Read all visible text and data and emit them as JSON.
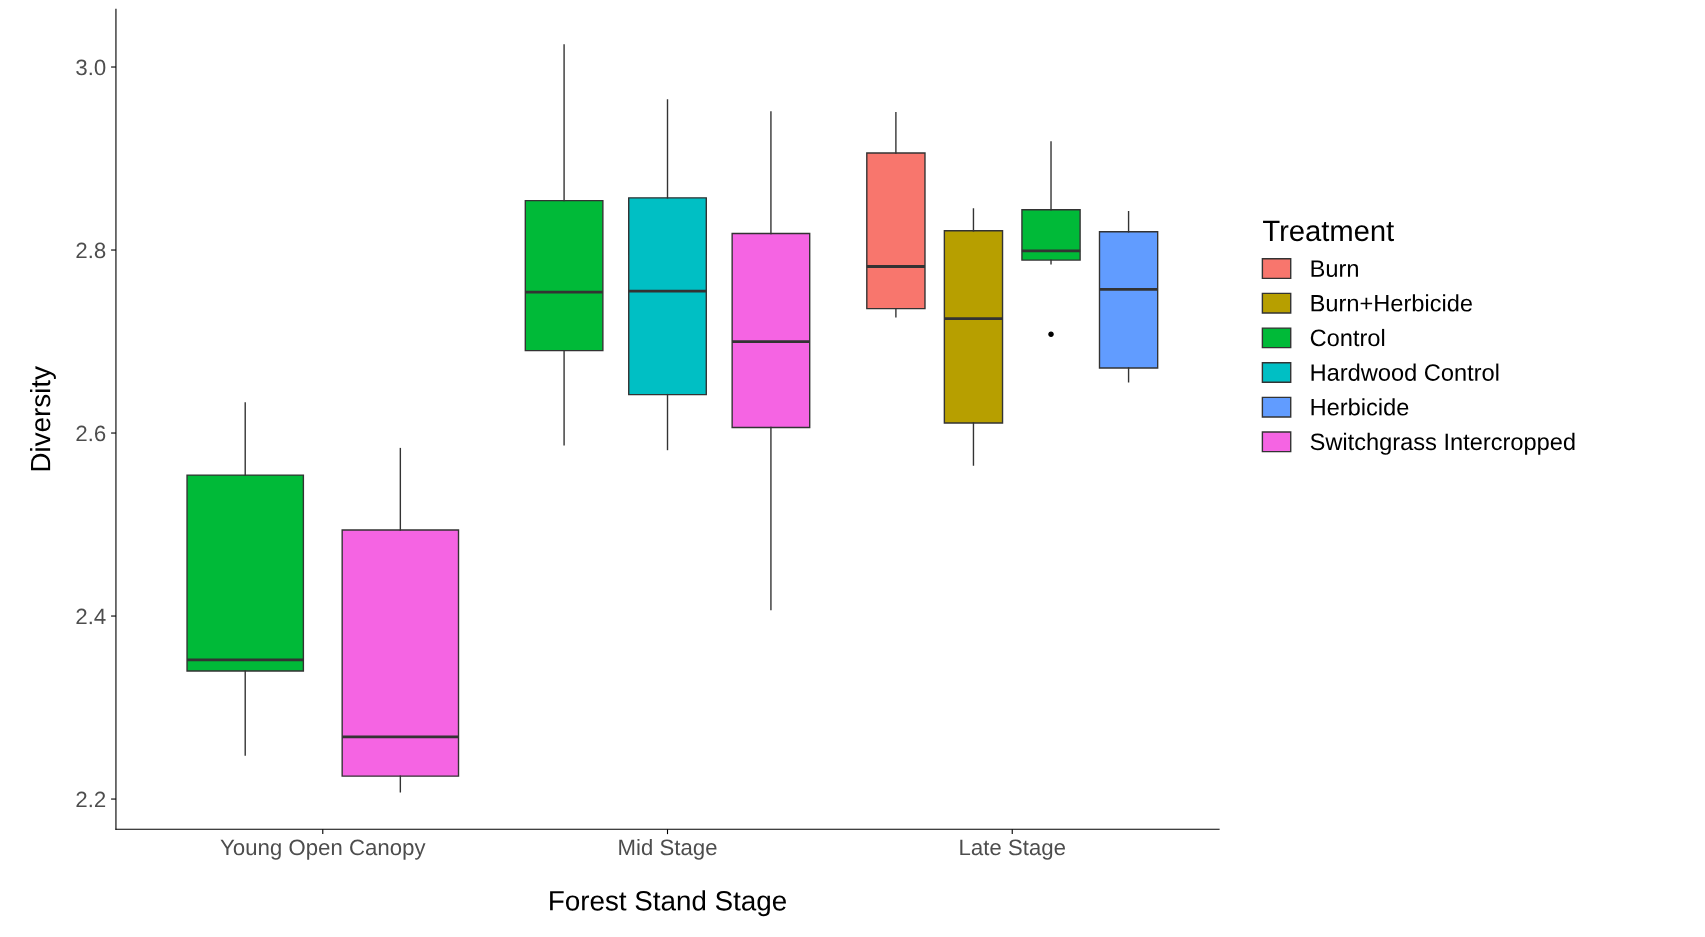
{
  "chart_data": {
    "type": "box",
    "xlabel": "Forest Stand Stage",
    "ylabel": "Diversity",
    "legend_title": "Treatment",
    "legend": "right",
    "grid": false,
    "categories": [
      "Young Open Canopy",
      "Mid Stage",
      "Late Stage"
    ],
    "ylim": [
      2.167,
      3.063
    ],
    "yticks": [
      {
        "value": 2.2,
        "label": "2.2"
      },
      {
        "value": 2.4,
        "label": "2.4"
      },
      {
        "value": 2.6,
        "label": "2.6"
      },
      {
        "value": 2.8,
        "label": "2.8"
      },
      {
        "value": 3.0,
        "label": "3.0"
      }
    ],
    "series": [
      {
        "name": "Burn",
        "color": "#f8766d",
        "boxes": [
          null,
          null,
          {
            "low": 2.727,
            "q1": 2.736,
            "median": 2.782,
            "q3": 2.906,
            "high": 2.95
          }
        ]
      },
      {
        "name": "Burn+Herbicide",
        "color": "#b79f00",
        "boxes": [
          null,
          null,
          {
            "low": 2.565,
            "q1": 2.611,
            "median": 2.725,
            "q3": 2.821,
            "high": 2.845
          }
        ]
      },
      {
        "name": "Control",
        "color": "#00ba38",
        "boxes": [
          {
            "low": 2.248,
            "q1": 2.34,
            "median": 2.352,
            "q3": 2.554,
            "high": 2.633
          },
          {
            "low": 2.587,
            "q1": 2.69,
            "median": 2.754,
            "q3": 2.854,
            "high": 3.024
          },
          {
            "low": 2.785,
            "q1": 2.789,
            "median": 2.799,
            "q3": 2.844,
            "high": 2.918,
            "outliers": [
              2.708
            ]
          }
        ]
      },
      {
        "name": "Hardwood Control",
        "color": "#00bfc4",
        "boxes": [
          null,
          {
            "low": 2.582,
            "q1": 2.642,
            "median": 2.755,
            "q3": 2.857,
            "high": 2.964
          },
          null
        ]
      },
      {
        "name": "Herbicide",
        "color": "#619cff",
        "boxes": [
          null,
          null,
          {
            "low": 2.656,
            "q1": 2.671,
            "median": 2.757,
            "q3": 2.82,
            "high": 2.842
          }
        ]
      },
      {
        "name": "Switchgrass Intercropped",
        "color": "#f564e3",
        "boxes": [
          {
            "low": 2.208,
            "q1": 2.225,
            "median": 2.268,
            "q3": 2.494,
            "high": 2.583
          },
          {
            "low": 2.407,
            "q1": 2.606,
            "median": 2.7,
            "q3": 2.818,
            "high": 2.951
          },
          null
        ]
      }
    ]
  }
}
